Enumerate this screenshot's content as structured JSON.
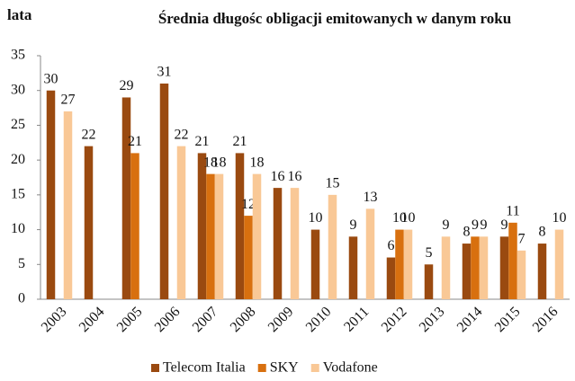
{
  "chart_data": {
    "type": "bar",
    "title": "Średnia długośc obligacji emitowanych w danym roku",
    "y_label": "lata",
    "categories": [
      "2003",
      "2004",
      "2005",
      "2006",
      "2007",
      "2008",
      "2009",
      "2010",
      "2011",
      "2012",
      "2013",
      "2014",
      "2015",
      "2016"
    ],
    "series": [
      {
        "name": "Telecom Italia",
        "color": "#9a4a10",
        "values": [
          30,
          22,
          29,
          31,
          21,
          21,
          16,
          10,
          9,
          6,
          5,
          8,
          9,
          8
        ]
      },
      {
        "name": "SKY",
        "color": "#d8700f",
        "values": [
          null,
          null,
          21,
          null,
          18,
          12,
          null,
          null,
          null,
          10,
          null,
          9,
          11,
          null
        ]
      },
      {
        "name": "Vodafone",
        "color": "#f9c896",
        "values": [
          27,
          null,
          null,
          22,
          18,
          18,
          16,
          15,
          13,
          10,
          9,
          9,
          7,
          10
        ]
      }
    ],
    "ylim": [
      0,
      35
    ],
    "yticks": [
      0,
      5,
      10,
      15,
      20,
      25,
      30,
      35
    ],
    "legend": "bottom"
  }
}
